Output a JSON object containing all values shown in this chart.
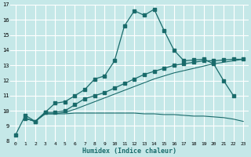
{
  "xlabel": "Humidex (Indice chaleur)",
  "bg_color": "#c5e8e8",
  "grid_color": "#ffffff",
  "line_color": "#1a6b6b",
  "xlim": [
    -0.5,
    23.5
  ],
  "ylim": [
    8,
    17
  ],
  "xticks": [
    0,
    1,
    2,
    3,
    4,
    5,
    6,
    7,
    8,
    9,
    10,
    11,
    12,
    13,
    14,
    15,
    16,
    17,
    18,
    19,
    20,
    21,
    22,
    23
  ],
  "yticks": [
    8,
    9,
    10,
    11,
    12,
    13,
    14,
    15,
    16,
    17
  ],
  "curve1_x": [
    0,
    1,
    2,
    3,
    4,
    5,
    6,
    7,
    8,
    9,
    10,
    11,
    12,
    13,
    14,
    15,
    16,
    17,
    18,
    19,
    20,
    21,
    22
  ],
  "curve1_y": [
    8.4,
    9.7,
    9.3,
    9.9,
    10.5,
    10.6,
    11.0,
    11.4,
    12.1,
    12.3,
    13.3,
    15.6,
    16.6,
    16.3,
    16.7,
    15.3,
    14.0,
    13.3,
    13.35,
    13.4,
    13.1,
    12.0,
    11.0
  ],
  "curve2_x": [
    1,
    2,
    3,
    4,
    5,
    6,
    7,
    8,
    9,
    10,
    11,
    12,
    13,
    14,
    15,
    16,
    17,
    18,
    19,
    20,
    21,
    22,
    23
  ],
  "curve2_y": [
    9.5,
    9.3,
    9.9,
    9.9,
    10.0,
    10.4,
    10.8,
    11.0,
    11.2,
    11.5,
    11.8,
    12.1,
    12.4,
    12.6,
    12.8,
    13.0,
    13.1,
    13.2,
    13.3,
    13.3,
    13.35,
    13.4,
    13.4
  ],
  "curve3_x": [
    1,
    2,
    3,
    4,
    5,
    6,
    7,
    8,
    9,
    10,
    11,
    12,
    13,
    14,
    15,
    16,
    17,
    18,
    19,
    20,
    21,
    22,
    23
  ],
  "curve3_y": [
    9.5,
    9.3,
    9.8,
    9.8,
    9.9,
    10.1,
    10.35,
    10.6,
    10.85,
    11.1,
    11.35,
    11.6,
    11.85,
    12.1,
    12.3,
    12.5,
    12.65,
    12.8,
    12.95,
    13.1,
    13.2,
    13.3,
    13.4
  ],
  "curve4_x": [
    1,
    2,
    3,
    4,
    5,
    6,
    7,
    8,
    9,
    10,
    11,
    12,
    13,
    14,
    15,
    16,
    17,
    18,
    19,
    20,
    21,
    22,
    23
  ],
  "curve4_y": [
    9.5,
    9.3,
    9.8,
    9.8,
    9.8,
    9.85,
    9.85,
    9.85,
    9.85,
    9.85,
    9.85,
    9.85,
    9.8,
    9.8,
    9.75,
    9.75,
    9.7,
    9.65,
    9.65,
    9.6,
    9.55,
    9.45,
    9.3
  ]
}
